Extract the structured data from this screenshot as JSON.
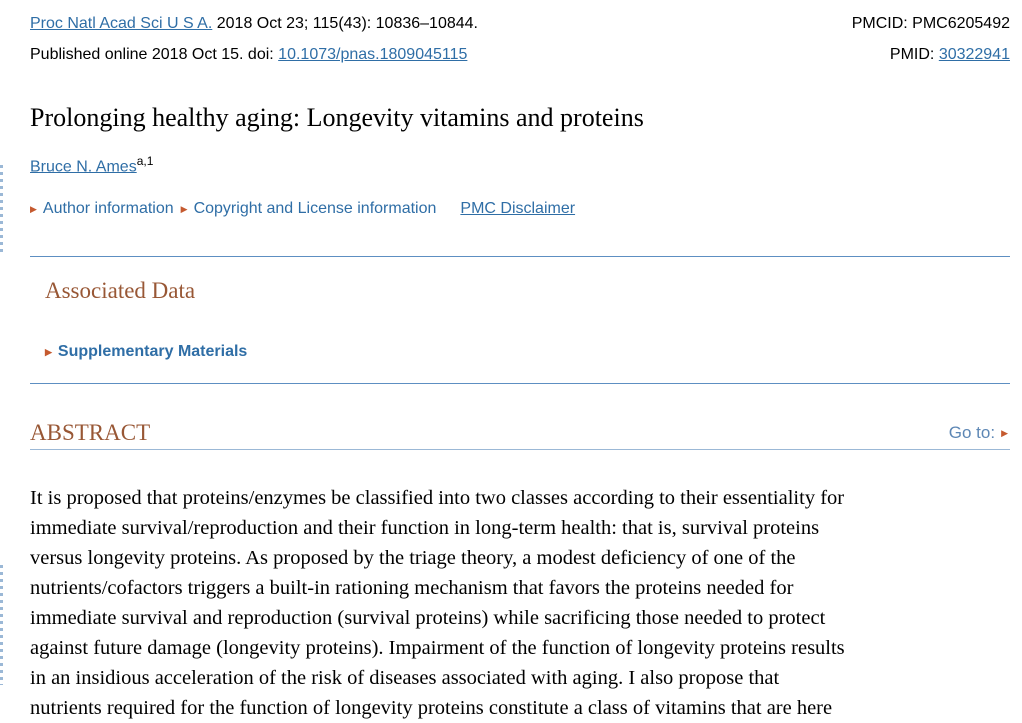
{
  "citation": {
    "journal": "Proc Natl Acad Sci U S A.",
    "details": " 2018 Oct 23; 115(43): 10836–10844.",
    "published": "Published online 2018 Oct 15. doi: ",
    "doi": "10.1073/pnas.1809045115"
  },
  "ids": {
    "pmcid": "PMCID: PMC6205492",
    "pmid_label": "PMID: ",
    "pmid": "30322941"
  },
  "title": "Prolonging healthy aging: Longevity vitamins and proteins",
  "author": {
    "name": "Bruce N. Ames",
    "sup": "a,1"
  },
  "meta_links": {
    "author_info": "Author information",
    "copyright": "Copyright and License information",
    "disclaimer": "PMC Disclaimer"
  },
  "associated_data": {
    "heading": "Associated Data",
    "supplementary": "Supplementary Materials"
  },
  "abstract": {
    "heading": "ABSTRACT",
    "goto": "Go to:",
    "lines": [
      "It is proposed that proteins/enzymes be classified into two classes according to their essentiality for",
      "immediate survival/reproduction and their function in long-term health: that is, survival proteins",
      "versus longevity proteins. As proposed by the triage theory, a modest deficiency of one of the",
      "nutrients/cofactors triggers a built-in rationing mechanism that favors the proteins needed for",
      "immediate survival and reproduction (survival proteins) while sacrificing those needed to protect",
      "against future damage (longevity proteins). Impairment of the function of longevity proteins results",
      "in an insidious acceleration of the risk of diseases associated with aging. I also propose that",
      "nutrients required for the function of longevity proteins constitute a class of vitamins that are here"
    ]
  },
  "colors": {
    "link": "#2f6ea6",
    "heading": "#985735",
    "rule": "#5d8fc2",
    "triangle": "#c55a2f"
  }
}
